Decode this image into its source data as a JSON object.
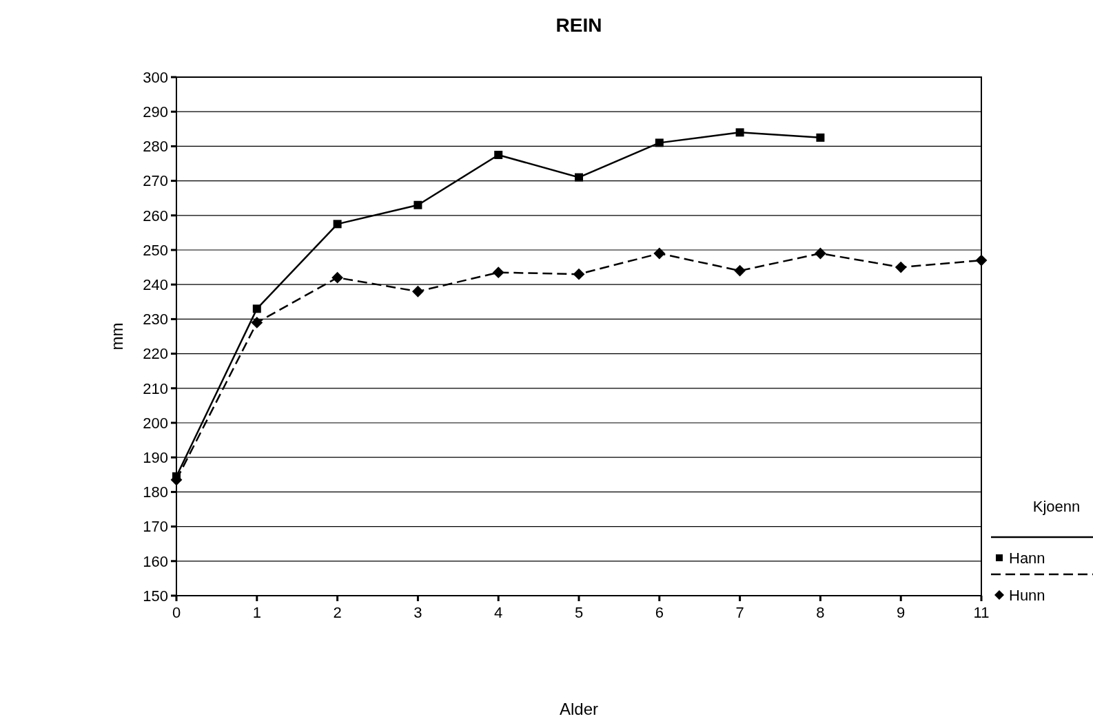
{
  "chart_data": {
    "type": "line",
    "title": "REIN",
    "xlabel": "Alder",
    "ylabel": "mm",
    "legend_title": "Kjoenn",
    "categories": [
      "0",
      "1",
      "2",
      "3",
      "4",
      "5",
      "6",
      "7",
      "8",
      "9",
      "11"
    ],
    "ylim": [
      150,
      300
    ],
    "yticks": [
      150,
      160,
      170,
      180,
      190,
      200,
      210,
      220,
      230,
      240,
      250,
      260,
      270,
      280,
      290,
      300
    ],
    "grid": "y",
    "legend": "right",
    "series": [
      {
        "name": "Hann",
        "color": "#000000",
        "marker": "square",
        "line_style": "solid",
        "values": [
          184.5,
          233,
          257.5,
          263,
          277.5,
          271,
          281,
          284,
          282.5,
          null,
          null
        ]
      },
      {
        "name": "Hunn",
        "color": "#000000",
        "marker": "diamond",
        "line_style": "dashed",
        "values": [
          183.5,
          229,
          242,
          238,
          243.5,
          243,
          249,
          244,
          249,
          245,
          247
        ]
      }
    ]
  }
}
